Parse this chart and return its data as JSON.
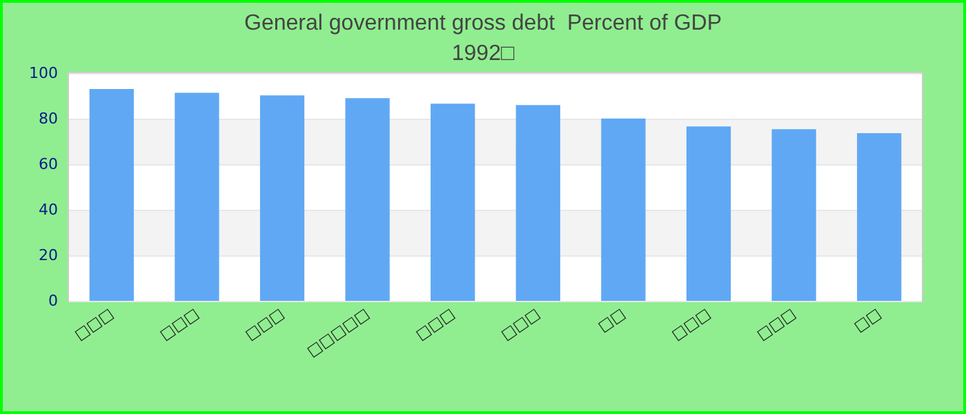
{
  "chart_data": {
    "type": "bar",
    "title": "General government gross debt  Percent of GDP",
    "subtitle": "1992□",
    "categories": [
      "□□□",
      "□□□",
      "□□□",
      "□□□□□",
      "□□□",
      "□□□",
      "□□",
      "□□□",
      "□□□",
      "□□"
    ],
    "values": [
      93.0,
      91.4,
      90.2,
      89.0,
      86.6,
      86.0,
      80.1,
      76.6,
      75.4,
      73.6
    ],
    "color": "#60a8f4",
    "ylim": [
      0,
      100
    ],
    "yticks": [
      0,
      20,
      40,
      60,
      80,
      100
    ],
    "grid": "y"
  }
}
